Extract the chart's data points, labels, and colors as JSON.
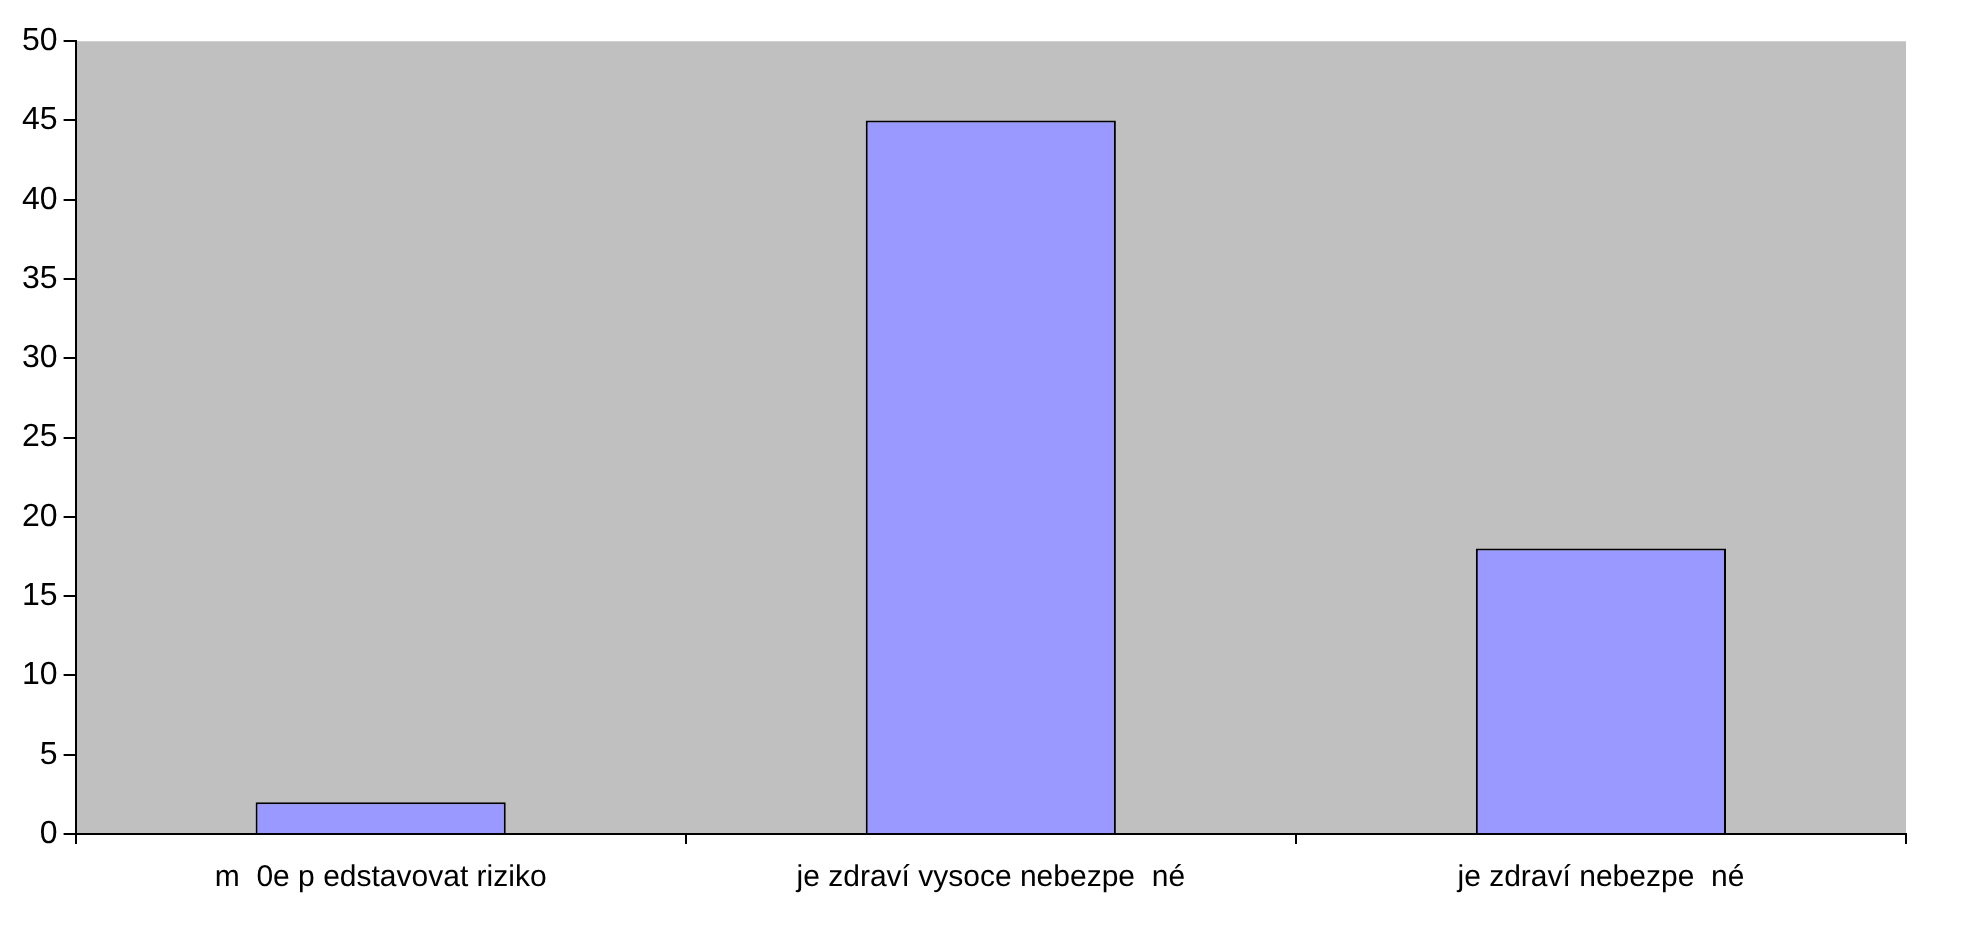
{
  "chart_data": {
    "type": "bar",
    "categories": [
      "m  0e p edstavovat riziko",
      "je zdraví vysoce nebezpe  né",
      "je zdraví nebezpe  né"
    ],
    "values": [
      2,
      45,
      18
    ],
    "color": "#9999ff",
    "ylim": [
      0,
      50
    ],
    "yticks": [
      0,
      5,
      10,
      15,
      20,
      25,
      30,
      35,
      40,
      45,
      50
    ],
    "grid": false,
    "legend": false
  }
}
